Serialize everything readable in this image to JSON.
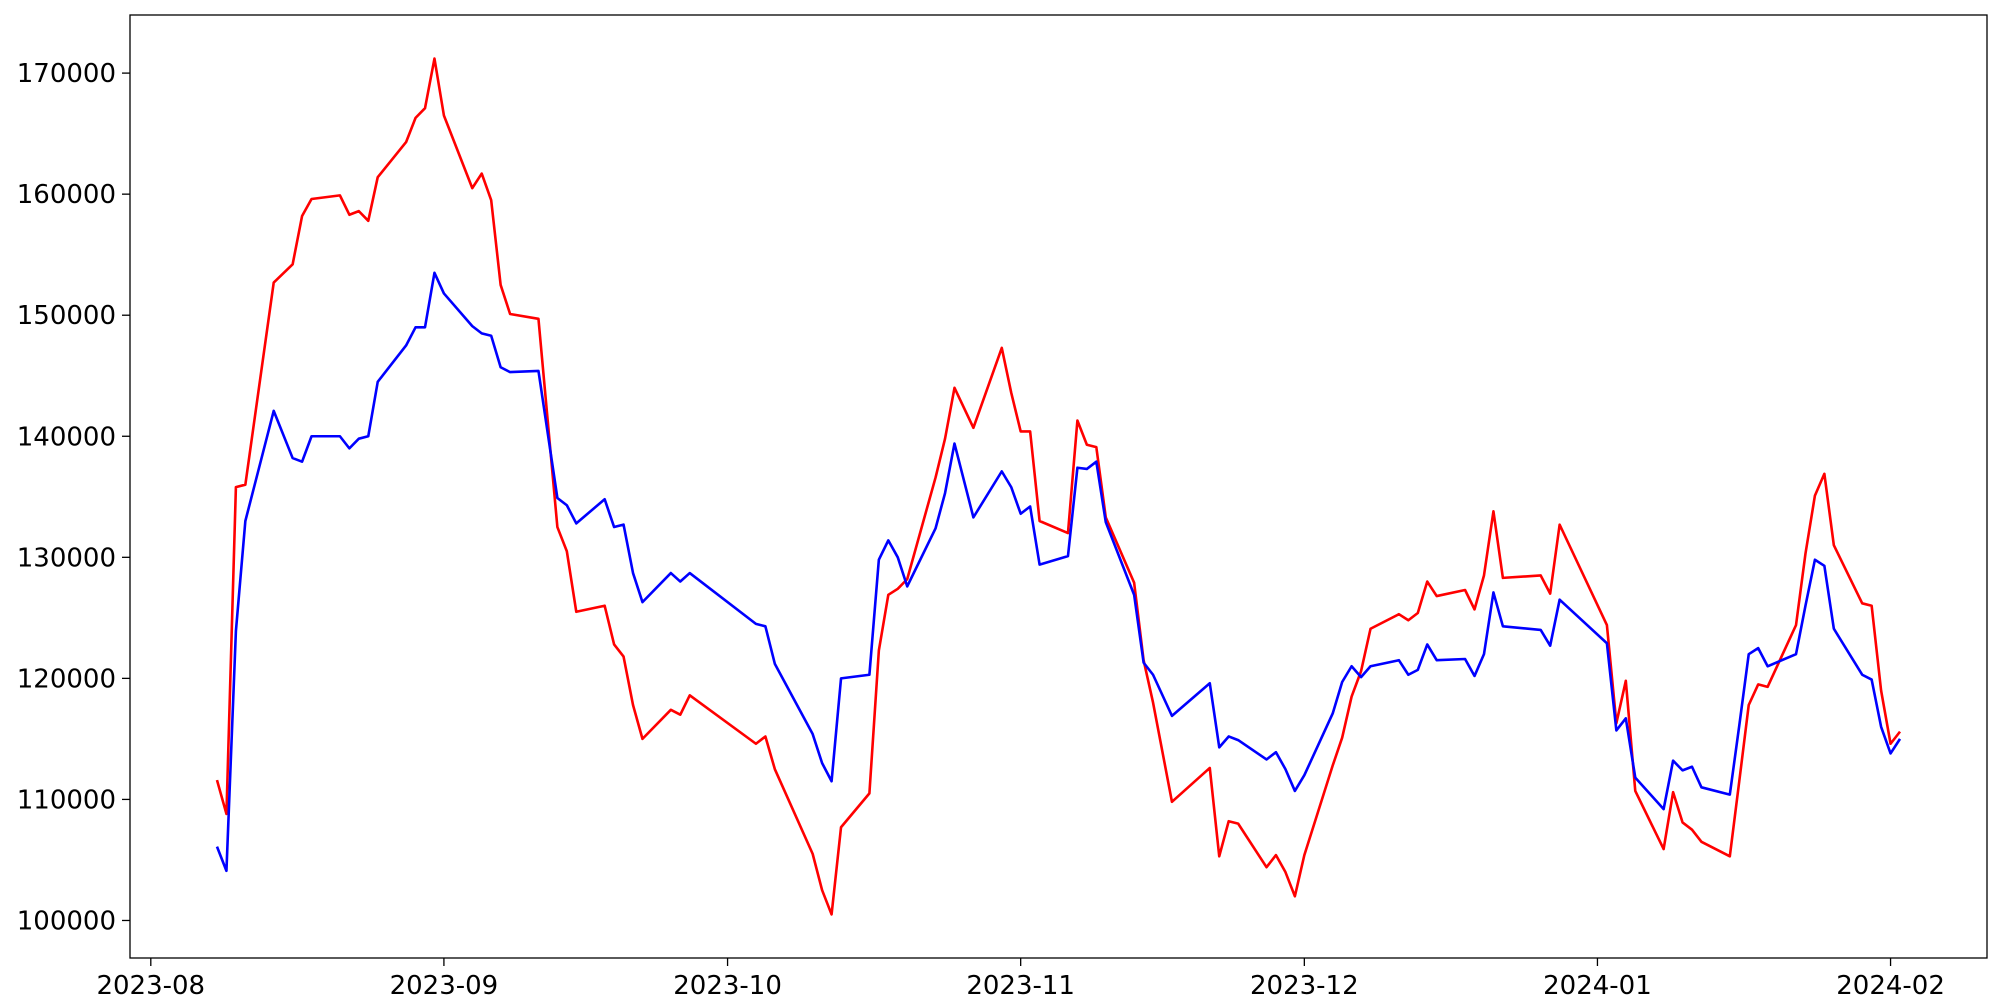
{
  "chart_data": {
    "type": "line",
    "x": [
      7,
      8,
      9,
      10,
      13,
      15,
      16,
      17,
      20,
      21,
      22,
      23,
      24,
      27,
      28,
      29,
      30,
      31,
      34,
      35,
      36,
      37,
      38,
      41,
      43,
      44,
      45,
      48,
      49,
      50,
      51,
      52,
      55,
      56,
      57,
      64,
      65,
      66,
      70,
      71,
      72,
      73,
      76,
      77,
      78,
      79,
      80,
      83,
      84,
      85,
      87,
      90,
      91,
      92,
      93,
      94,
      97,
      98,
      99,
      100,
      101,
      104,
      105,
      106,
      108,
      112,
      113,
      114,
      115,
      118,
      119,
      120,
      121,
      122,
      125,
      126,
      127,
      128,
      129,
      132,
      133,
      134,
      135,
      136,
      139,
      140,
      141,
      142,
      143,
      147,
      148,
      149,
      154,
      155,
      156,
      157,
      160,
      161,
      162,
      163,
      164,
      167,
      168,
      169,
      170,
      171,
      174,
      175,
      176,
      177,
      178,
      181,
      182,
      183,
      184,
      185
    ],
    "series": [
      {
        "color": "red",
        "values": [
          111600,
          108800,
          135800,
          136000,
          152700,
          154200,
          158200,
          159600,
          159900,
          158300,
          158600,
          157800,
          161400,
          164300,
          166300,
          167100,
          171200,
          166500,
          160500,
          161700,
          159500,
          152500,
          150100,
          149700,
          132500,
          130500,
          125500,
          126000,
          122800,
          121800,
          117800,
          115000,
          117400,
          117000,
          118600,
          114600,
          115200,
          112500,
          105500,
          102500,
          100500,
          107700,
          110500,
          122300,
          126900,
          127400,
          128200,
          136600,
          139800,
          144000,
          140700,
          147300,
          143600,
          140400,
          140400,
          133000,
          132000,
          141300,
          139300,
          139100,
          133300,
          127900,
          121500,
          118000,
          109800,
          112600,
          105300,
          108200,
          108000,
          104400,
          105400,
          104000,
          102000,
          105400,
          112800,
          115100,
          118500,
          120600,
          124100,
          125300,
          124800,
          125400,
          128000,
          126800,
          127300,
          125700,
          128500,
          133800,
          128300,
          128500,
          127000,
          132700,
          124400,
          116300,
          119800,
          110700,
          105900,
          110600,
          108100,
          107500,
          106500,
          105300,
          111500,
          117800,
          119500,
          119300,
          124400,
          130300,
          135100,
          136900,
          131000,
          126200,
          126000,
          119000,
          114600,
          115600
        ]
      },
      {
        "color": "blue",
        "values": [
          106100,
          104100,
          123900,
          133000,
          142100,
          138200,
          137900,
          140000,
          140000,
          139000,
          139800,
          140000,
          144500,
          147500,
          149000,
          149000,
          153500,
          151800,
          149100,
          148500,
          148300,
          145700,
          145300,
          145400,
          134900,
          134300,
          132800,
          134800,
          132500,
          132700,
          128700,
          126300,
          128700,
          128000,
          128700,
          124500,
          124300,
          121200,
          115400,
          113000,
          111500,
          120000,
          120300,
          129800,
          131400,
          130000,
          127600,
          132400,
          135300,
          139400,
          133300,
          137100,
          135800,
          133600,
          134200,
          129400,
          130100,
          137400,
          137300,
          137900,
          132900,
          126900,
          121300,
          120300,
          116900,
          119600,
          114300,
          115200,
          114900,
          113300,
          113900,
          112500,
          110700,
          112000,
          117100,
          119700,
          121000,
          120100,
          121000,
          121500,
          120300,
          120700,
          122800,
          121500,
          121600,
          120200,
          122000,
          127100,
          124300,
          124000,
          122700,
          126500,
          122900,
          115700,
          116700,
          111800,
          109200,
          113200,
          112400,
          112700,
          111000,
          110400,
          116100,
          122000,
          122500,
          121000,
          122000,
          126000,
          129800,
          129300,
          124100,
          120300,
          119900,
          116000,
          113800,
          115000
        ]
      }
    ],
    "xlim": [
      -2.2,
      194.2
    ],
    "xticks": [
      {
        "value": 0,
        "label": "2023-08"
      },
      {
        "value": 31,
        "label": "2023-09"
      },
      {
        "value": 61,
        "label": "2023-10"
      },
      {
        "value": 92,
        "label": "2023-11"
      },
      {
        "value": 122,
        "label": "2023-12"
      },
      {
        "value": 153,
        "label": "2024-01"
      },
      {
        "value": 184,
        "label": "2024-02"
      }
    ],
    "ylim": [
      96900,
      174800
    ],
    "yticks": [
      100000,
      110000,
      120000,
      130000,
      140000,
      150000,
      160000,
      170000
    ]
  }
}
